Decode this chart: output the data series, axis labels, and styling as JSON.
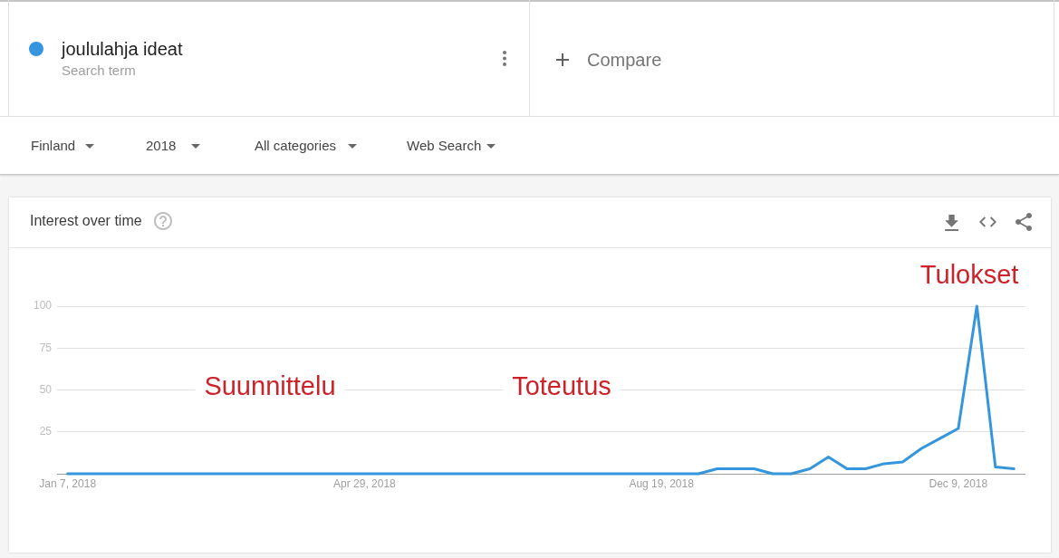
{
  "chart_data": {
    "type": "line",
    "title": "Interest over time",
    "x": [
      "2018-01-07",
      "2018-01-14",
      "2018-01-21",
      "2018-01-28",
      "2018-02-04",
      "2018-02-11",
      "2018-02-18",
      "2018-02-25",
      "2018-03-04",
      "2018-03-11",
      "2018-03-18",
      "2018-03-25",
      "2018-04-01",
      "2018-04-08",
      "2018-04-15",
      "2018-04-22",
      "2018-04-29",
      "2018-05-06",
      "2018-05-13",
      "2018-05-20",
      "2018-05-27",
      "2018-06-03",
      "2018-06-10",
      "2018-06-17",
      "2018-06-24",
      "2018-07-01",
      "2018-07-08",
      "2018-07-15",
      "2018-07-22",
      "2018-07-29",
      "2018-08-05",
      "2018-08-12",
      "2018-08-19",
      "2018-08-26",
      "2018-09-02",
      "2018-09-09",
      "2018-09-16",
      "2018-09-23",
      "2018-09-30",
      "2018-10-07",
      "2018-10-14",
      "2018-10-21",
      "2018-10-28",
      "2018-11-04",
      "2018-11-11",
      "2018-11-18",
      "2018-11-25",
      "2018-12-02",
      "2018-12-09",
      "2018-12-16",
      "2018-12-23",
      "2018-12-30"
    ],
    "series": [
      {
        "name": "joululahja ideat",
        "color": "#3596de",
        "values": [
          0,
          0,
          0,
          0,
          0,
          0,
          0,
          0,
          0,
          0,
          0,
          0,
          0,
          0,
          0,
          0,
          0,
          0,
          0,
          0,
          0,
          0,
          0,
          0,
          0,
          0,
          0,
          0,
          0,
          0,
          0,
          0,
          0,
          0,
          0,
          3,
          3,
          3,
          0,
          0,
          3,
          10,
          3,
          3,
          6,
          7,
          15,
          21,
          27,
          100,
          4,
          3
        ]
      }
    ],
    "xlim": [
      "2018-01-03",
      "2019-01-03"
    ],
    "xticks": [
      {
        "value": "2018-01-07",
        "label": "Jan 7, 2018"
      },
      {
        "value": "2018-04-29",
        "label": "Apr 29, 2018"
      },
      {
        "value": "2018-08-19",
        "label": "Aug 19, 2018"
      },
      {
        "value": "2018-12-09",
        "label": "Dec 9, 2018"
      }
    ],
    "ylim": [
      0,
      100
    ],
    "yticks": [
      25,
      50,
      75,
      100
    ],
    "grid": "y",
    "legend": "top left",
    "annotations": [
      "Search term",
      "Compare",
      "Finland",
      "2018",
      "All categories",
      "Web Search",
      "Tulokset",
      "Suunnittelu",
      "Toteutus"
    ]
  }
}
